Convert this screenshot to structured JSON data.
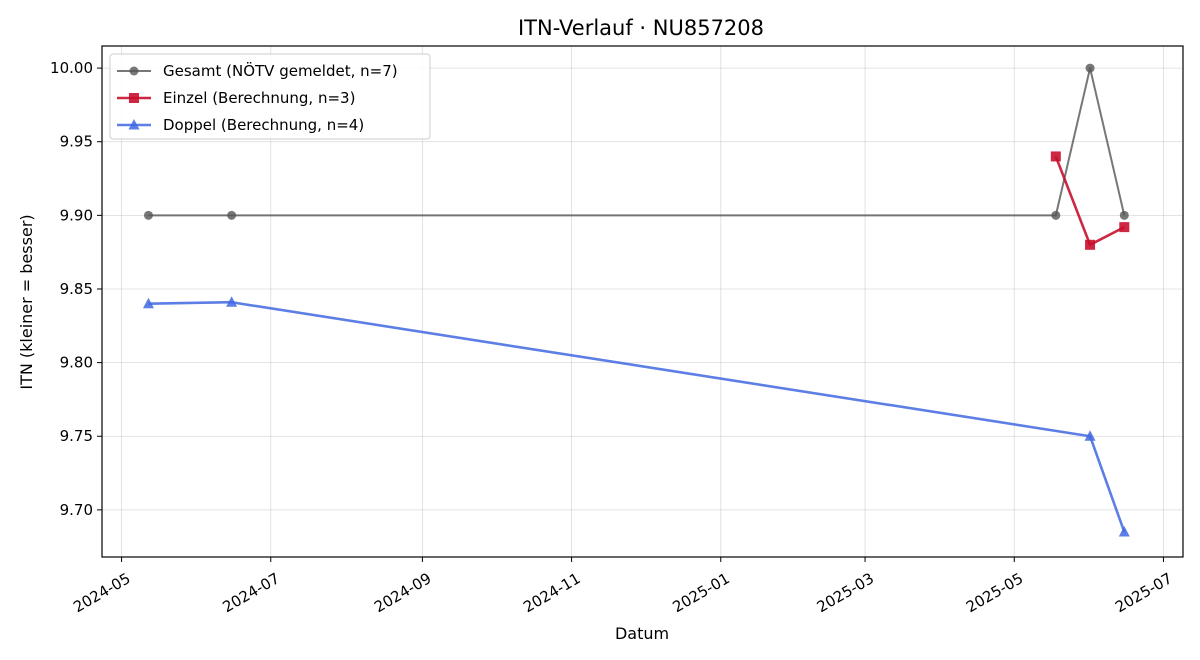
{
  "chart_data": {
    "type": "line",
    "title": "ITN-Verlauf · NU857208",
    "xlabel": "Datum",
    "ylabel": "ITN  (kleiner = besser)",
    "xlim": [
      "2024-04-23",
      "2025-07-09"
    ],
    "ylim": [
      9.668,
      10.015
    ],
    "x_ticks": [
      "2024-05",
      "2024-07",
      "2024-09",
      "2024-11",
      "2025-01",
      "2025-03",
      "2025-05",
      "2025-07"
    ],
    "y_ticks": [
      "9.70",
      "9.75",
      "9.80",
      "9.85",
      "9.90",
      "9.95",
      "10.00"
    ],
    "grid": true,
    "legend_position": "top-left",
    "series": [
      {
        "name": "Gesamt (NÖTV gemeldet, n=7)",
        "color": "#555555",
        "marker": "circle",
        "points": [
          {
            "x": "2024-05-12",
            "y": 9.9
          },
          {
            "x": "2024-06-15",
            "y": 9.9
          },
          {
            "x": "2025-05-18",
            "y": 9.9
          },
          {
            "x": "2025-06-01",
            "y": 10.0
          },
          {
            "x": "2025-06-15",
            "y": 9.9
          }
        ]
      },
      {
        "name": "Einzel (Berechnung, n=3)",
        "color": "#c8102e",
        "marker": "square",
        "points": [
          {
            "x": "2025-05-18",
            "y": 9.94
          },
          {
            "x": "2025-06-01",
            "y": 9.88
          },
          {
            "x": "2025-06-15",
            "y": 9.892
          }
        ]
      },
      {
        "name": "Doppel (Berechnung, n=4)",
        "color": "#4169e1",
        "marker": "triangle",
        "points": [
          {
            "x": "2024-05-12",
            "y": 9.84
          },
          {
            "x": "2024-06-15",
            "y": 9.841
          },
          {
            "x": "2025-06-01",
            "y": 9.75
          },
          {
            "x": "2025-06-15",
            "y": 9.685
          }
        ]
      }
    ]
  }
}
